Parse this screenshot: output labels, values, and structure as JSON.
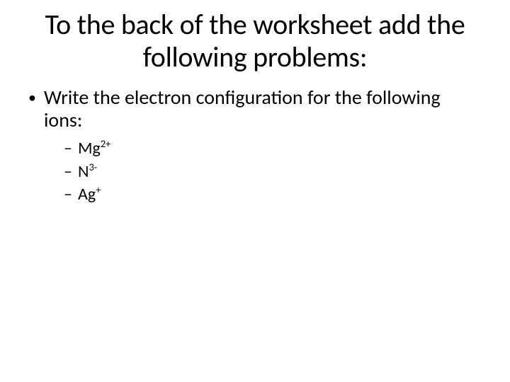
{
  "colors": {
    "background": "#ffffff",
    "text": "#000000"
  },
  "typography": {
    "font_family": "Calibri, 'Segoe UI', Arial, sans-serif",
    "title_fontsize": 40,
    "body_fontsize": 28,
    "sub_fontsize": 24,
    "sup_scale": 0.6
  },
  "title": "To the back of the worksheet add the following problems:",
  "bullet": {
    "marker": "•",
    "text": "Write the electron configuration for the following ions:"
  },
  "sub_marker": "–",
  "ions": [
    {
      "symbol": "Mg",
      "charge": "2+"
    },
    {
      "symbol": "N",
      "charge": "3-"
    },
    {
      "symbol": "Ag",
      "charge": "+"
    }
  ]
}
